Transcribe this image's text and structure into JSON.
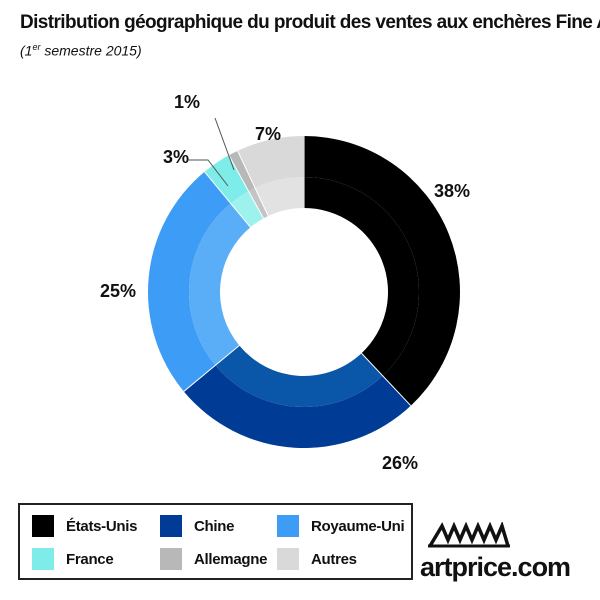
{
  "chart_data": {
    "type": "pie",
    "title": "Distribution géographique du produit des ventes aux enchères Fine Art",
    "subtitle_prefix": "(1",
    "subtitle_sup": "er",
    "subtitle_suffix": " semestre 2015)",
    "legend_position": "bottom-left",
    "slices": [
      {
        "label": "États-Unis",
        "value": 38,
        "display": "38%",
        "color": "#000000",
        "inner_color": "#000000"
      },
      {
        "label": "Chine",
        "value": 26,
        "display": "26%",
        "color": "#003c96",
        "inner_color": "#0a56a8"
      },
      {
        "label": "Royaume-Uni",
        "value": 25,
        "display": "25%",
        "color": "#3d9cf5",
        "inner_color": "#5aaef7"
      },
      {
        "label": "France",
        "value": 3,
        "display": "3%",
        "color": "#7eece8",
        "inner_color": "#9ef2ee"
      },
      {
        "label": "Allemagne",
        "value": 1,
        "display": "1%",
        "color": "#b8b8b8",
        "inner_color": "#c4c4c4"
      },
      {
        "label": "Autres",
        "value": 7,
        "display": "7%",
        "color": "#d9d9d9",
        "inner_color": "#e2e2e2"
      }
    ]
  },
  "logo": {
    "text": "artprice.com"
  }
}
